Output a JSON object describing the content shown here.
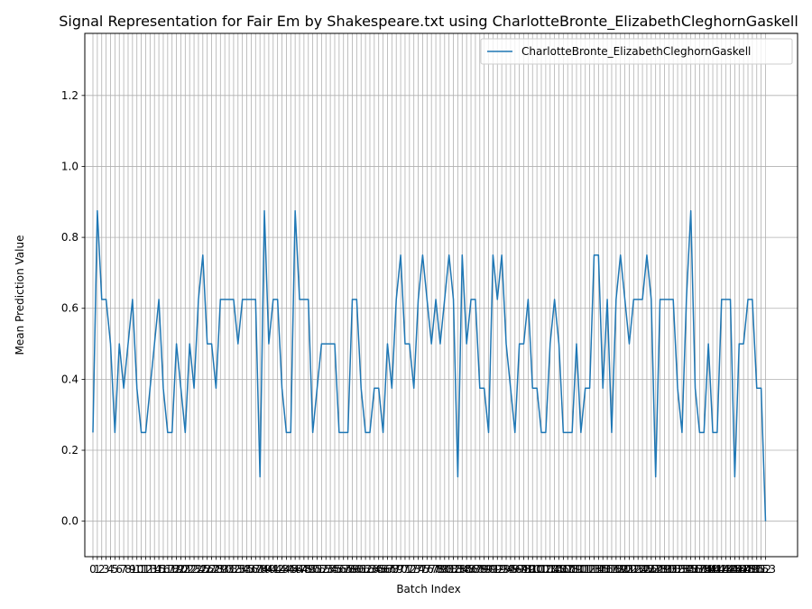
{
  "chart_data": {
    "type": "line",
    "title": "Signal Representation for Fair Em by Shakespeare.txt using CharlotteBronte_ElizabethCleghornGaskell",
    "xlabel": "Batch Index",
    "ylabel": "Mean Prediction Value",
    "ylim": [
      -0.1,
      1.375
    ],
    "yticks": [
      0.0,
      0.2,
      0.4,
      0.6,
      0.8,
      1.0,
      1.2
    ],
    "ytick_labels": [
      "0.0",
      "0.2",
      "0.4",
      "0.6",
      "0.8",
      "1.0",
      "1.2"
    ],
    "grid": true,
    "legend_position": "top-right",
    "color": "#1f77b4",
    "series": [
      {
        "name": "CharlotteBronte_ElizabethCleghornGaskell",
        "values": [
          0.25,
          0.875,
          0.625,
          0.625,
          0.5,
          0.25,
          0.5,
          0.375,
          0.5,
          0.625,
          0.375,
          0.25,
          0.25,
          0.375,
          0.5,
          0.625,
          0.375,
          0.25,
          0.25,
          0.5,
          0.375,
          0.25,
          0.5,
          0.375,
          0.625,
          0.75,
          0.5,
          0.5,
          0.375,
          0.625,
          0.625,
          0.625,
          0.625,
          0.5,
          0.625,
          0.625,
          0.625,
          0.625,
          0.125,
          0.875,
          0.5,
          0.625,
          0.625,
          0.375,
          0.25,
          0.25,
          0.875,
          0.625,
          0.625,
          0.625,
          0.25,
          0.375,
          0.5,
          0.5,
          0.5,
          0.5,
          0.25,
          0.25,
          0.25,
          0.625,
          0.625,
          0.375,
          0.25,
          0.25,
          0.375,
          0.375,
          0.25,
          0.5,
          0.375,
          0.625,
          0.75,
          0.5,
          0.5,
          0.375,
          0.625,
          0.75,
          0.625,
          0.5,
          0.625,
          0.5,
          0.625,
          0.75,
          0.625,
          0.125,
          0.75,
          0.5,
          0.625,
          0.625,
          0.375,
          0.375,
          0.25,
          0.75,
          0.625,
          0.75,
          0.5,
          0.375,
          0.25,
          0.5,
          0.5,
          0.625,
          0.375,
          0.375,
          0.25,
          0.25,
          0.5,
          0.625,
          0.5,
          0.25,
          0.25,
          0.25,
          0.5,
          0.25,
          0.375,
          0.375,
          0.75,
          0.75,
          0.375,
          0.625,
          0.25,
          0.625,
          0.75,
          0.625,
          0.5,
          0.625,
          0.625,
          0.625,
          0.75,
          0.625,
          0.125,
          0.625,
          0.625,
          0.625,
          0.625,
          0.375,
          0.25,
          0.625,
          0.875,
          0.375,
          0.25,
          0.25,
          0.5,
          0.25,
          0.25,
          0.625,
          0.625,
          0.625,
          0.125,
          0.5,
          0.5,
          0.625,
          0.625,
          0.375,
          0.375,
          0.0
        ]
      }
    ]
  }
}
